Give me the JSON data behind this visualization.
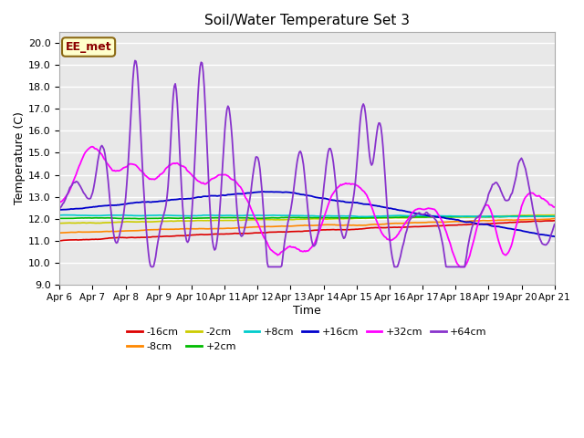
{
  "title": "Soil/Water Temperature Set 3",
  "xlabel": "Time",
  "ylabel": "Temperature (C)",
  "ylim": [
    9.0,
    20.5
  ],
  "xlim": [
    0,
    15
  ],
  "bg_color": "#e8e8e8",
  "fig_bg": "#ffffff",
  "annotation_text": "EE_met",
  "annotation_bg": "#ffffcc",
  "annotation_border": "#8b6914",
  "series_order": [
    "-16cm",
    "-8cm",
    "-2cm",
    "+2cm",
    "+8cm",
    "+16cm",
    "+32cm",
    "+64cm"
  ],
  "series": {
    "-16cm": {
      "color": "#dd0000",
      "lw": 1.2
    },
    "-8cm": {
      "color": "#ff8800",
      "lw": 1.2
    },
    "-2cm": {
      "color": "#cccc00",
      "lw": 1.2
    },
    "+2cm": {
      "color": "#00bb00",
      "lw": 1.2
    },
    "+8cm": {
      "color": "#00cccc",
      "lw": 1.2
    },
    "+16cm": {
      "color": "#0000cc",
      "lw": 1.3
    },
    "+32cm": {
      "color": "#ff00ff",
      "lw": 1.3
    },
    "+64cm": {
      "color": "#8833cc",
      "lw": 1.3
    }
  },
  "xtick_labels": [
    "Apr 6",
    "Apr 7",
    "Apr 8",
    "Apr 9",
    "Apr 10",
    "Apr 11",
    "Apr 12",
    "Apr 13",
    "Apr 14",
    "Apr 15",
    "Apr 16",
    "Apr 17",
    "Apr 18",
    "Apr 19",
    "Apr 20",
    "Apr 21"
  ],
  "ytick_labels": [
    "9.0",
    "10.0",
    "11.0",
    "12.0",
    "13.0",
    "14.0",
    "15.0",
    "16.0",
    "17.0",
    "18.0",
    "19.0",
    "20.0"
  ]
}
